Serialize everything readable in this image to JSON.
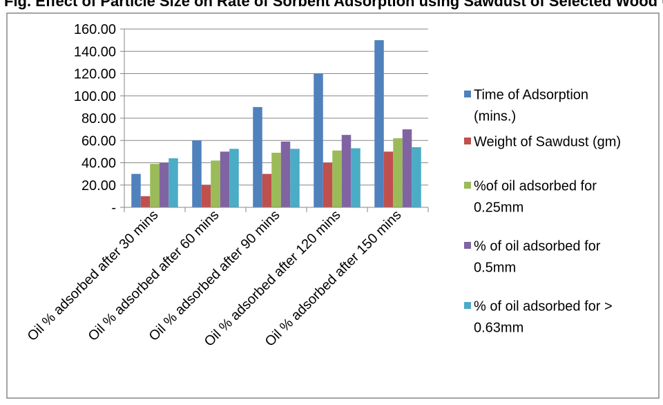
{
  "header_fragment": "Fig. Effect of Particle Size on Rate of Sorbent Adsorption using Sawdust of Selected Wood Using Varying Weights",
  "chart_data": {
    "type": "bar",
    "categories": [
      "Oil % adsorbed after 30 mins",
      "Oil % adsorbed after 60 mins",
      "Oil % adsorbed after 90 mins",
      "Oil % adsorbed after 120 mins",
      "Oil % adsorbed after 150 mins"
    ],
    "series": [
      {
        "name": "Time of Adsorption (mins.)",
        "legend_lines": [
          "Time of Adsorption",
          "(mins.)"
        ],
        "color": "#4F81BD",
        "values": [
          30,
          60,
          90,
          120,
          150
        ]
      },
      {
        "name": "Weight of Sawdust (gm)",
        "legend_lines": [
          "Weight of Sawdust (gm)"
        ],
        "color": "#C0504D",
        "values": [
          10,
          20,
          30,
          40,
          50
        ]
      },
      {
        "name": "%of oil adsorbed for 0.25mm",
        "legend_lines": [
          "%of oil adsorbed for",
          "0.25mm"
        ],
        "color": "#9BBB59",
        "values": [
          39,
          42,
          49,
          51,
          62
        ]
      },
      {
        "name": "% of oil adsorbed for 0.5mm",
        "legend_lines": [
          "% of oil adsorbed for",
          "0.5mm"
        ],
        "color": "#8064A2",
        "values": [
          40,
          50,
          59,
          65,
          70
        ]
      },
      {
        "name": "% of oil adsorbed for > 0.63mm",
        "legend_lines": [
          "% of oil adsorbed for >",
          "0.63mm"
        ],
        "color": "#4BACC6",
        "values": [
          44,
          52.5,
          52.5,
          53,
          54
        ]
      }
    ],
    "y_ticks": [
      "-",
      "20.00",
      "40.00",
      "60.00",
      "80.00",
      "100.00",
      "120.00",
      "140.00",
      "160.00"
    ],
    "ylim": [
      0,
      160
    ],
    "grid": true,
    "legend_position": "right"
  }
}
